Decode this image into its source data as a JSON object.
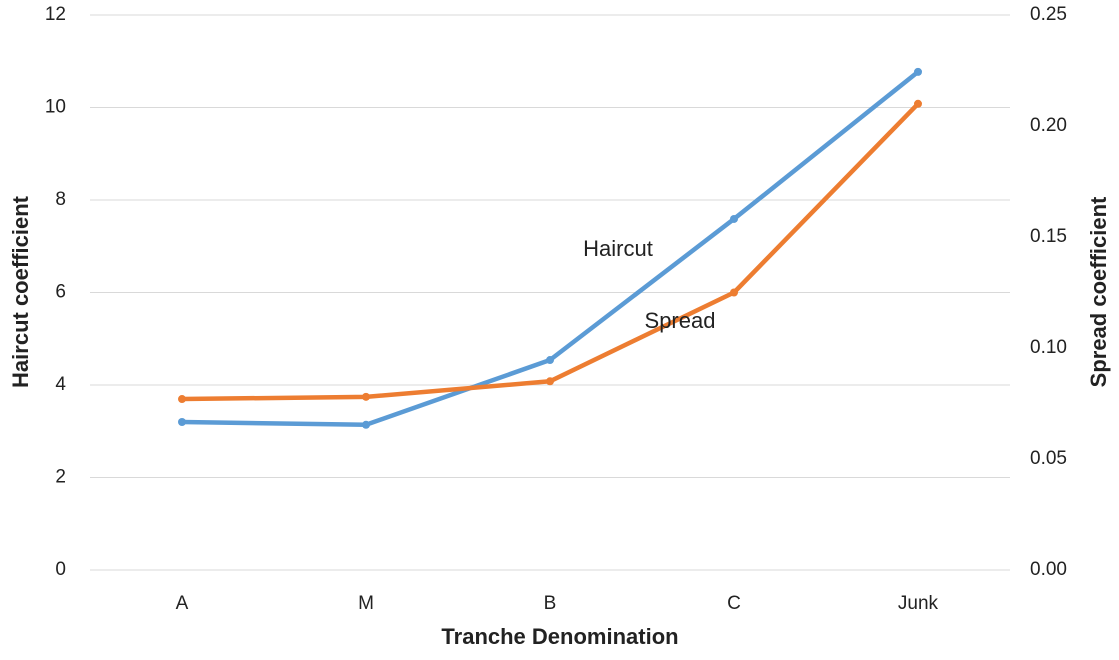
{
  "chart_data": {
    "type": "line",
    "x_label": "Tranche Denomination",
    "y_label": "Haircut coefficient",
    "y2_label": "Spread coefficient",
    "categories": [
      "A",
      "M",
      "B",
      "C",
      "Junk"
    ],
    "series": [
      {
        "name": "Haircut",
        "color": "#5b9bd5",
        "values": [
          3.2,
          3.14,
          4.54,
          7.59,
          10.77
        ]
      },
      {
        "name": "Spread",
        "color": "#ed7d31",
        "axis": "y2",
        "values": [
          0.077,
          0.078,
          0.085,
          0.125,
          0.21
        ]
      }
    ],
    "ylim": [
      0,
      12
    ],
    "yticks": [
      0,
      2,
      4,
      6,
      8,
      10,
      12
    ],
    "y2lim": [
      0,
      0.25
    ],
    "y2ticks": [
      {
        "value": 0,
        "label": "0.00"
      },
      0.05,
      {
        "value": 0.1,
        "label": "0.10"
      },
      0.15,
      {
        "value": 0.2,
        "label": "0.20"
      },
      0.25
    ],
    "grid": true
  }
}
